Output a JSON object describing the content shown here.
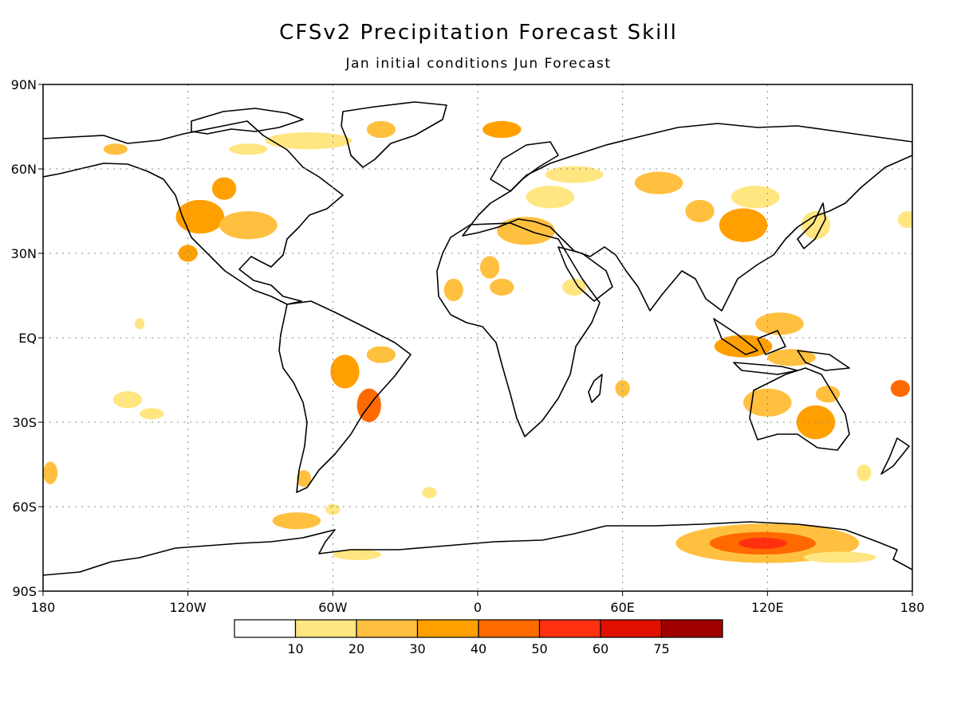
{
  "title": "CFSv2 Precipitation Forecast Skill",
  "subtitle": "Jan initial conditions   Jun Forecast",
  "axes": {
    "lat_labels": [
      "90N",
      "60N",
      "30N",
      "EQ",
      "30S",
      "60S",
      "90S"
    ],
    "lon_labels": [
      "180",
      "120W",
      "60W",
      "0",
      "60E",
      "120E",
      "180"
    ]
  },
  "colorbar": {
    "colors": [
      "#ffffff",
      "#ffe680",
      "#ffc040",
      "#ffa000",
      "#ff6a00",
      "#ff3010",
      "#e01000",
      "#a00000"
    ],
    "labels": [
      "10",
      "20",
      "30",
      "40",
      "50",
      "60",
      "75"
    ]
  },
  "skill_blobs": [
    {
      "lon": -115,
      "lat": 43,
      "rx": 10,
      "ry": 6,
      "level": 3
    },
    {
      "lon": -95,
      "lat": 40,
      "rx": 12,
      "ry": 5,
      "level": 2
    },
    {
      "lon": -105,
      "lat": 53,
      "rx": 5,
      "ry": 4,
      "level": 3
    },
    {
      "lon": -120,
      "lat": 30,
      "rx": 4,
      "ry": 3,
      "level": 3
    },
    {
      "lon": -70,
      "lat": 70,
      "rx": 18,
      "ry": 3,
      "level": 1
    },
    {
      "lon": -40,
      "lat": 74,
      "rx": 6,
      "ry": 3,
      "level": 2
    },
    {
      "lon": -95,
      "lat": 67,
      "rx": 8,
      "ry": 2,
      "level": 1
    },
    {
      "lon": -150,
      "lat": 67,
      "rx": 5,
      "ry": 2,
      "level": 2
    },
    {
      "lon": -55,
      "lat": -12,
      "rx": 6,
      "ry": 6,
      "level": 3
    },
    {
      "lon": -45,
      "lat": -24,
      "rx": 5,
      "ry": 6,
      "level": 4
    },
    {
      "lon": -40,
      "lat": -6,
      "rx": 6,
      "ry": 3,
      "level": 2
    },
    {
      "lon": -72,
      "lat": -50,
      "rx": 3,
      "ry": 3,
      "level": 2
    },
    {
      "lon": -75,
      "lat": -65,
      "rx": 10,
      "ry": 3,
      "level": 2
    },
    {
      "lon": -60,
      "lat": -61,
      "rx": 3,
      "ry": 2,
      "level": 1
    },
    {
      "lon": -50,
      "lat": -77,
      "rx": 10,
      "ry": 2,
      "level": 1
    },
    {
      "lon": -10,
      "lat": 17,
      "rx": 4,
      "ry": 4,
      "level": 2
    },
    {
      "lon": 5,
      "lat": 25,
      "rx": 4,
      "ry": 4,
      "level": 2
    },
    {
      "lon": 10,
      "lat": 18,
      "rx": 5,
      "ry": 3,
      "level": 2
    },
    {
      "lon": 20,
      "lat": 38,
      "rx": 12,
      "ry": 5,
      "level": 2
    },
    {
      "lon": 10,
      "lat": 74,
      "rx": 8,
      "ry": 3,
      "level": 3
    },
    {
      "lon": 30,
      "lat": 50,
      "rx": 10,
      "ry": 4,
      "level": 1
    },
    {
      "lon": 40,
      "lat": 58,
      "rx": 12,
      "ry": 3,
      "level": 1
    },
    {
      "lon": 75,
      "lat": 55,
      "rx": 10,
      "ry": 4,
      "level": 2
    },
    {
      "lon": 40,
      "lat": 18,
      "rx": 5,
      "ry": 3,
      "level": 1
    },
    {
      "lon": 92,
      "lat": 45,
      "rx": 6,
      "ry": 4,
      "level": 2
    },
    {
      "lon": 110,
      "lat": 40,
      "rx": 10,
      "ry": 6,
      "level": 3
    },
    {
      "lon": 115,
      "lat": 50,
      "rx": 10,
      "ry": 4,
      "level": 1
    },
    {
      "lon": 140,
      "lat": 40,
      "rx": 6,
      "ry": 5,
      "level": 1
    },
    {
      "lon": 125,
      "lat": 5,
      "rx": 10,
      "ry": 4,
      "level": 2
    },
    {
      "lon": 110,
      "lat": -3,
      "rx": 12,
      "ry": 4,
      "level": 3
    },
    {
      "lon": 130,
      "lat": -7,
      "rx": 10,
      "ry": 3,
      "level": 2
    },
    {
      "lon": 120,
      "lat": -23,
      "rx": 10,
      "ry": 5,
      "level": 2
    },
    {
      "lon": 140,
      "lat": -30,
      "rx": 8,
      "ry": 6,
      "level": 3
    },
    {
      "lon": 145,
      "lat": -20,
      "rx": 5,
      "ry": 3,
      "level": 2
    },
    {
      "lon": 175,
      "lat": -18,
      "rx": 4,
      "ry": 3,
      "level": 4
    },
    {
      "lon": 160,
      "lat": -48,
      "rx": 3,
      "ry": 3,
      "level": 1
    },
    {
      "lon": 120,
      "lat": -73,
      "rx": 38,
      "ry": 7,
      "level": 2
    },
    {
      "lon": 118,
      "lat": -73,
      "rx": 22,
      "ry": 4,
      "level": 4
    },
    {
      "lon": 118,
      "lat": -73,
      "rx": 10,
      "ry": 2,
      "level": 5
    },
    {
      "lon": 150,
      "lat": -78,
      "rx": 15,
      "ry": 2,
      "level": 1
    },
    {
      "lon": -145,
      "lat": -22,
      "rx": 6,
      "ry": 3,
      "level": 1
    },
    {
      "lon": -135,
      "lat": -27,
      "rx": 5,
      "ry": 2,
      "level": 1
    },
    {
      "lon": -140,
      "lat": 5,
      "rx": 2,
      "ry": 2,
      "level": 1
    },
    {
      "lon": 60,
      "lat": -18,
      "rx": 3,
      "ry": 3,
      "level": 2
    },
    {
      "lon": -177,
      "lat": -48,
      "rx": 3,
      "ry": 4,
      "level": 2
    },
    {
      "lon": 178,
      "lat": 42,
      "rx": 4,
      "ry": 3,
      "level": 1
    },
    {
      "lon": -20,
      "lat": -55,
      "rx": 3,
      "ry": 2,
      "level": 1
    }
  ]
}
